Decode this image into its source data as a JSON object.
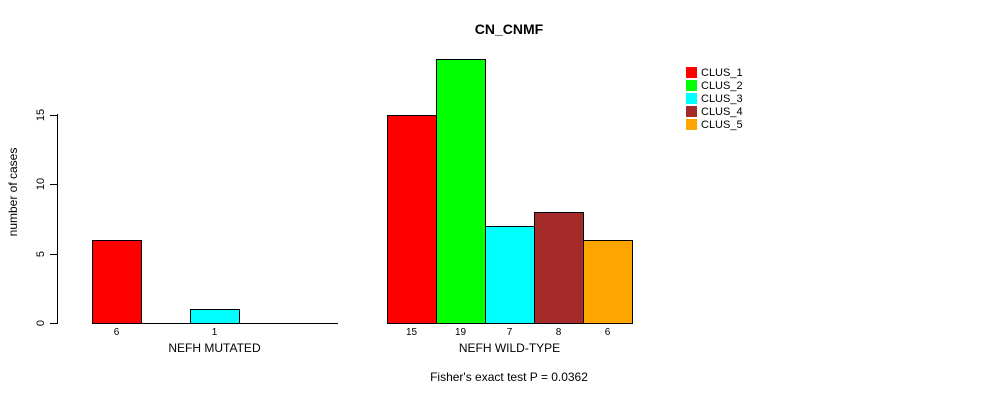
{
  "chart_data": {
    "type": "bar",
    "title": "CN_CNMF",
    "ylabel": "number of cases",
    "xlabel": "",
    "ylim": [
      0,
      15
    ],
    "yticks": [
      0,
      5,
      10,
      15
    ],
    "grid": false,
    "legend_position": "top-right",
    "background": "#FFFFFF",
    "bar_border_color": "#000000",
    "legend": [
      {
        "label": "CLUS_1",
        "color": "#FF0000"
      },
      {
        "label": "CLUS_2",
        "color": "#00FF00"
      },
      {
        "label": "CLUS_3",
        "color": "#00FFFF"
      },
      {
        "label": "CLUS_4",
        "color": "#A52A2A"
      },
      {
        "label": "CLUS_5",
        "color": "#FFA500"
      }
    ],
    "groups": [
      {
        "label": "NEFH MUTATED",
        "values": [
          6,
          0,
          1,
          0,
          0
        ]
      },
      {
        "label": "NEFH WILD-TYPE",
        "values": [
          15,
          19,
          7,
          8,
          6
        ]
      }
    ],
    "footnote": "Fisher's exact test P = 0.0362"
  }
}
